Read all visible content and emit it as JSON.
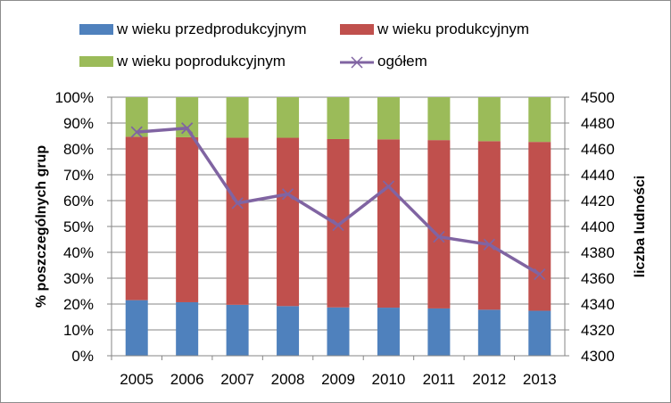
{
  "chart_data": {
    "type": "bar",
    "stacked": "percent",
    "categories": [
      "2005",
      "2006",
      "2007",
      "2008",
      "2009",
      "2010",
      "2011",
      "2012",
      "2013"
    ],
    "series": [
      {
        "name": "w wieku przedprodukcyjnym",
        "color": "#4f81bd",
        "values": [
          21.5,
          20.7,
          19.7,
          19.2,
          18.7,
          18.6,
          18.3,
          17.8,
          17.4
        ]
      },
      {
        "name": "w wieku produkcyjnym",
        "color": "#c0504d",
        "values": [
          63.2,
          63.8,
          64.6,
          65.1,
          65.1,
          65.1,
          65.1,
          65.2,
          65.3
        ]
      },
      {
        "name": "w wieku poprodukcyjnym",
        "color": "#9bbb59",
        "values": [
          15.3,
          15.5,
          15.7,
          15.7,
          16.2,
          16.3,
          16.6,
          17.0,
          17.3
        ]
      }
    ],
    "line_series": {
      "name": "ogółem",
      "color": "#8064a2",
      "axis": "secondary",
      "values": [
        4473,
        4476,
        4418,
        4425,
        4401,
        4431,
        4392,
        4386,
        4363
      ]
    },
    "y_left": {
      "label": "% poszczególnych grup",
      "ylim": [
        0,
        100
      ],
      "ticks": [
        "0%",
        "10%",
        "20%",
        "30%",
        "40%",
        "50%",
        "60%",
        "70%",
        "80%",
        "90%",
        "100%"
      ]
    },
    "y_right": {
      "label": "liczba ludności",
      "ylim": [
        4300,
        4500
      ],
      "ticks": [
        "4300",
        "4320",
        "4340",
        "4360",
        "4380",
        "4400",
        "4420",
        "4440",
        "4460",
        "4480",
        "4500"
      ]
    },
    "grid": true,
    "legend_position": "top"
  }
}
